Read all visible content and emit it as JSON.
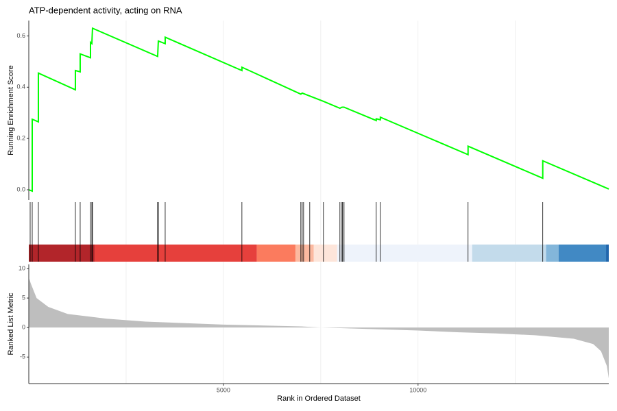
{
  "chart_data": [
    {
      "type": "line",
      "title": "ATP-dependent activity, acting on RNA",
      "ylabel": "Running Enrichment Score",
      "x": [
        0,
        88,
        88,
        246,
        246,
        1197,
        1197,
        1320,
        1320,
        1585,
        1585,
        1620,
        1637,
        3310,
        3328,
        3504,
        3504,
        5475,
        5475,
        6989,
        7025,
        7570,
        7993,
        8046,
        8099,
        8926,
        8926,
        9032,
        9032,
        11285,
        11285,
        13204,
        13204,
        14900
      ],
      "series": [
        {
          "color": "#00ff00",
          "values": [
            0,
            -0.005,
            0.275,
            0.265,
            0.455,
            0.39,
            0.465,
            0.46,
            0.53,
            0.515,
            0.575,
            0.57,
            0.63,
            0.52,
            0.58,
            0.57,
            0.595,
            0.465,
            0.478,
            0.373,
            0.377,
            0.345,
            0.318,
            0.322,
            0.322,
            0.27,
            0.277,
            0.273,
            0.283,
            0.137,
            0.17,
            0.045,
            0.113,
            0.003
          ]
        }
      ],
      "xlim": [
        0,
        14900
      ],
      "ylim": [
        -0.04,
        0.66
      ],
      "yticks": [
        {
          "value": 0,
          "label": "0.0"
        },
        {
          "value": 0.2,
          "label": "0.2"
        },
        {
          "value": 0.4,
          "label": "0.4"
        },
        {
          "value": 0.6,
          "label": "0.6"
        }
      ],
      "xgrid": [
        2500,
        5000,
        7500,
        10000,
        12500
      ]
    },
    {
      "type": "rug",
      "hit_color": "#000000",
      "hits": [
        35,
        88,
        246,
        1197,
        1320,
        1585,
        1620,
        1637,
        3310,
        3328,
        3504,
        5475,
        6989,
        7025,
        7060,
        7218,
        7570,
        7993,
        8046,
        8063,
        8099,
        8926,
        9032,
        11285,
        13204
      ],
      "color_bands": [
        {
          "start": 0,
          "end": 1690,
          "color": "#b2252a"
        },
        {
          "start": 1690,
          "end": 5860,
          "color": "#e6403c"
        },
        {
          "start": 5860,
          "end": 6850,
          "color": "#fb7b5e"
        },
        {
          "start": 6850,
          "end": 7320,
          "color": "#fcb9a0"
        },
        {
          "start": 7320,
          "end": 7920,
          "color": "#fde5da"
        },
        {
          "start": 7920,
          "end": 11390,
          "color": "#eef3fb"
        },
        {
          "start": 11390,
          "end": 13290,
          "color": "#c3dbeb"
        },
        {
          "start": 13290,
          "end": 13610,
          "color": "#83b6da"
        },
        {
          "start": 13610,
          "end": 14830,
          "color": "#4189c4"
        },
        {
          "start": 14830,
          "end": 14900,
          "color": "#2166ac"
        }
      ],
      "xlim": [
        0,
        14900
      ],
      "xgrid": [
        2500,
        5000,
        7500,
        10000,
        12500
      ]
    },
    {
      "type": "area",
      "xlabel": "Rank in Ordered Dataset",
      "ylabel": "Ranked List Metric",
      "color": "#bebebe",
      "x": [
        0,
        50,
        200,
        500,
        1000,
        2000,
        3000,
        5000,
        7000,
        7500,
        9000,
        10000,
        11000,
        12000,
        13000,
        14000,
        14500,
        14700,
        14850,
        14900
      ],
      "values": [
        8.5,
        7.5,
        5,
        3.5,
        2.3,
        1.5,
        1.0,
        0.5,
        0.2,
        0,
        -0.3,
        -0.5,
        -0.8,
        -1.0,
        -1.3,
        -1.9,
        -2.8,
        -4,
        -6.5,
        -8.6
      ],
      "xlim": [
        0,
        14900
      ],
      "ylim": [
        -9.5,
        10.7
      ],
      "yticks": [
        -5,
        0,
        5,
        10
      ],
      "xticks": [
        5000,
        10000
      ],
      "xgrid": [
        2500,
        5000,
        7500,
        10000,
        12500
      ]
    }
  ]
}
